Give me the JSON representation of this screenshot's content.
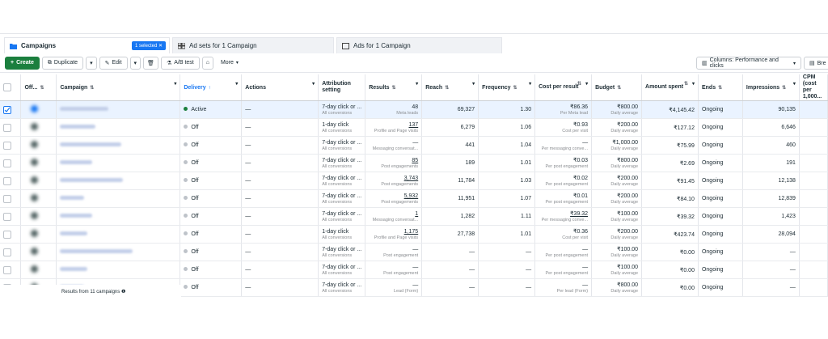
{
  "tabs": {
    "campaigns": "Campaigns",
    "selected_badge": "1 selected",
    "adsets": "Ad sets for 1 Campaign",
    "ads": "Ads for 1 Campaign"
  },
  "toolbar": {
    "create": "Create",
    "duplicate": "Duplicate",
    "edit": "Edit",
    "ab_test": "A/B test",
    "more": "More",
    "columns": "Columns: Performance and clicks",
    "breakdown": "Bre"
  },
  "columns": {
    "offon": "Off...",
    "campaign": "Campaign",
    "delivery": "Delivery",
    "actions": "Actions",
    "attribution": "Attribution setting",
    "results": "Results",
    "reach": "Reach",
    "frequency": "Frequency",
    "cost_per_result": "Cost per result",
    "budget": "Budget",
    "amount_spent": "Amount spent",
    "ends": "Ends",
    "impressions": "Impressions",
    "cpm": "CPM (cost per 1,000..."
  },
  "rows": [
    {
      "delivery": "Active",
      "actions": "—",
      "attr": "7-day click or ...",
      "attr_sub": "All conversions",
      "results": "48",
      "results_sub": "Meta leads",
      "reach": "69,327",
      "freq": "1.30",
      "cpr": "₹86.36",
      "cpr_sub": "Per Meta lead",
      "budget": "₹800.00",
      "budget_sub": "Daily average",
      "spent": "₹4,145.42",
      "ends": "Ongoing",
      "impr": "90,135"
    },
    {
      "delivery": "Off",
      "actions": "—",
      "attr": "1-day click",
      "attr_sub": "All conversions",
      "results": "137",
      "results_sub": "Profile and Page visits",
      "reach": "6,279",
      "freq": "1.06",
      "cpr": "₹0.93",
      "cpr_sub": "Cost per visit",
      "budget": "₹200.00",
      "budget_sub": "Daily average",
      "spent": "₹127.12",
      "ends": "Ongoing",
      "impr": "6,646"
    },
    {
      "delivery": "Off",
      "actions": "—",
      "attr": "7-day click or ...",
      "attr_sub": "All conversions",
      "results": "—",
      "results_sub": "Messaging conversat...",
      "reach": "441",
      "freq": "1.04",
      "cpr": "—",
      "cpr_sub": "Per messaging conve...",
      "budget": "₹1,000.00",
      "budget_sub": "Daily average",
      "spent": "₹75.99",
      "ends": "Ongoing",
      "impr": "460"
    },
    {
      "delivery": "Off",
      "actions": "—",
      "attr": "7-day click or ...",
      "attr_sub": "All conversions",
      "results": "85",
      "results_sub": "Post engagements",
      "reach": "189",
      "freq": "1.01",
      "cpr": "₹0.03",
      "cpr_sub": "Per post engagement",
      "budget": "₹800.00",
      "budget_sub": "Daily average",
      "spent": "₹2.69",
      "ends": "Ongoing",
      "impr": "191"
    },
    {
      "delivery": "Off",
      "actions": "—",
      "attr": "7-day click or ...",
      "attr_sub": "All conversions",
      "results": "3,743",
      "results_sub": "Post engagements",
      "reach": "11,784",
      "freq": "1.03",
      "cpr": "₹0.02",
      "cpr_sub": "Per post engagement",
      "budget": "₹200.00",
      "budget_sub": "Daily average",
      "spent": "₹91.45",
      "ends": "Ongoing",
      "impr": "12,138"
    },
    {
      "delivery": "Off",
      "actions": "—",
      "attr": "7-day click or ...",
      "attr_sub": "All conversions",
      "results": "5,932",
      "results_sub": "Post engagements",
      "reach": "11,951",
      "freq": "1.07",
      "cpr": "₹0.01",
      "cpr_sub": "Per post engagement",
      "budget": "₹200.00",
      "budget_sub": "Daily average",
      "spent": "₹84.10",
      "ends": "Ongoing",
      "impr": "12,839"
    },
    {
      "delivery": "Off",
      "actions": "—",
      "attr": "7-day click or ...",
      "attr_sub": "All conversions",
      "results": "1",
      "results_sub": "Messaging conversat...",
      "reach": "1,282",
      "freq": "1.11",
      "cpr": "₹39.32",
      "cpr_sub": "Per messaging conve...",
      "budget": "₹100.00",
      "budget_sub": "Daily average",
      "spent": "₹39.32",
      "ends": "Ongoing",
      "impr": "1,423"
    },
    {
      "delivery": "Off",
      "actions": "—",
      "attr": "1-day click",
      "attr_sub": "All conversions",
      "results": "1,175",
      "results_sub": "Profile and Page visits",
      "reach": "27,738",
      "freq": "1.01",
      "cpr": "₹0.36",
      "cpr_sub": "Cost per visit",
      "budget": "₹200.00",
      "budget_sub": "Daily average",
      "spent": "₹423.74",
      "ends": "Ongoing",
      "impr": "28,094"
    },
    {
      "delivery": "Off",
      "actions": "—",
      "attr": "7-day click or ...",
      "attr_sub": "All conversions",
      "results": "—",
      "results_sub": "Post engagement",
      "reach": "—",
      "freq": "—",
      "cpr": "—",
      "cpr_sub": "Per post engagement",
      "budget": "₹100.00",
      "budget_sub": "Daily average",
      "spent": "₹0.00",
      "ends": "Ongoing",
      "impr": "—"
    },
    {
      "delivery": "Off",
      "actions": "—",
      "attr": "7-day click or ...",
      "attr_sub": "All conversions",
      "results": "—",
      "results_sub": "Post engagement",
      "reach": "—",
      "freq": "—",
      "cpr": "—",
      "cpr_sub": "Per post engagement",
      "budget": "₹100.00",
      "budget_sub": "Daily average",
      "spent": "₹0.00",
      "ends": "Ongoing",
      "impr": "—"
    },
    {
      "delivery": "Off",
      "actions": "—",
      "attr": "7-day click or ...",
      "attr_sub": "All conversions",
      "results": "—",
      "results_sub": "Lead (Form)",
      "reach": "—",
      "freq": "—",
      "cpr": "—",
      "cpr_sub": "Per lead (Form)",
      "budget": "₹800.00",
      "budget_sub": "Daily average",
      "spent": "₹0.00",
      "ends": "Ongoing",
      "impr": "—"
    }
  ],
  "footer": "Results from 11 campaigns"
}
